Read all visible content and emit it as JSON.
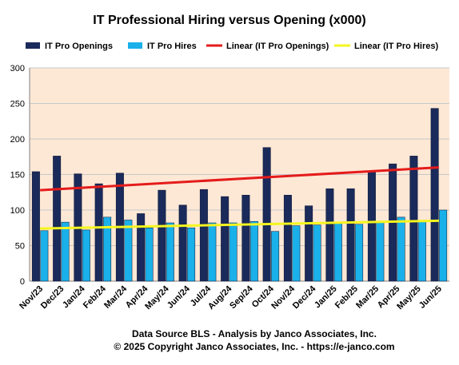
{
  "colors": {
    "openings": "#1a2a5a",
    "hires": "#1ab0ea",
    "trend_openings": "#e51b1b",
    "trend_hires": "#f5f51f",
    "plot_bg": "#fde8d6",
    "grid": "#c8c8c8"
  },
  "footer": {
    "line1": "Data Source BLS - Analysis  by Janco Associates,  Inc.",
    "line2": "© 2025 Copyright Janco  Associates, Inc. - https://e-janco.com"
  },
  "chart_data": {
    "type": "bar",
    "title": "IT Professional Hiring versus Opening (x000)",
    "legend_position": "top",
    "grid": true,
    "ylim": [
      0,
      300
    ],
    "yticks": [
      0,
      50,
      100,
      150,
      200,
      250,
      300
    ],
    "categories": [
      "Nov/23",
      "Dec/23",
      "Jan/24",
      "Feb/24",
      "Mar/24",
      "Apr/24",
      "May/24",
      "Jun/24",
      "Jul/24",
      "Aug/24",
      "Sep/24",
      "Oct/24",
      "Nov/24",
      "Dec/24",
      "Jan/25",
      "Feb/25",
      "Mar/25",
      "Apr/25",
      "May/25",
      "Jun/25"
    ],
    "series": [
      {
        "name": "IT Pro Openings",
        "values": [
          154,
          176,
          151,
          137,
          152,
          95,
          128,
          107,
          129,
          119,
          121,
          188,
          121,
          106,
          130,
          130,
          154,
          165,
          176,
          243
        ]
      },
      {
        "name": "IT Pro Hires",
        "values": [
          71,
          83,
          72,
          90,
          86,
          75,
          82,
          75,
          82,
          82,
          84,
          70,
          78,
          79,
          82,
          80,
          83,
          90,
          84,
          100
        ]
      }
    ],
    "trendlines": [
      {
        "name": "Linear (IT Pro Openings)",
        "start": 128,
        "end": 160
      },
      {
        "name": "Linear (IT Pro Hires)",
        "start": 74,
        "end": 85
      }
    ]
  }
}
